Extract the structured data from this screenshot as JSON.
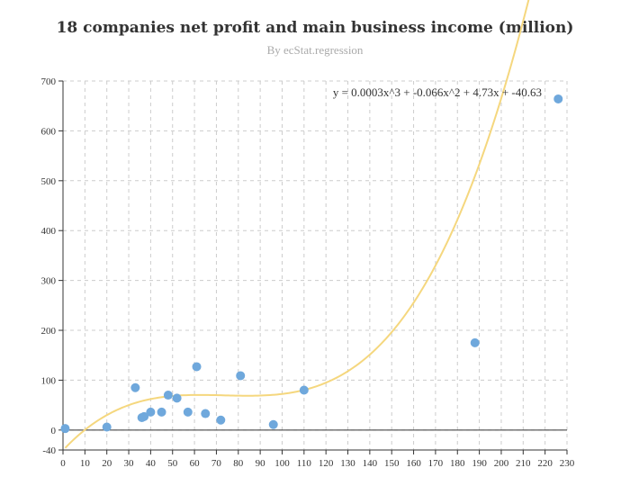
{
  "chart_data": {
    "type": "scatter",
    "title": "18 companies net profit and main business income (million)",
    "subtitle": "By ecStat.regression",
    "xlabel": "",
    "ylabel": "",
    "xlim": [
      0,
      230
    ],
    "ylim": [
      -40,
      700
    ],
    "x_ticks": [
      0,
      10,
      20,
      30,
      40,
      50,
      60,
      70,
      80,
      90,
      100,
      110,
      120,
      130,
      140,
      150,
      160,
      170,
      180,
      190,
      200,
      210,
      220,
      230
    ],
    "y_ticks": [
      -40,
      0,
      100,
      200,
      300,
      400,
      500,
      600,
      700
    ],
    "grid": true,
    "colors": {
      "points": "#6fa8dc",
      "fit_line": "#f5d77e"
    },
    "series": [
      {
        "type": "scatter",
        "points": [
          [
            1,
            3
          ],
          [
            20,
            6
          ],
          [
            33,
            85
          ],
          [
            36,
            25
          ],
          [
            37,
            27
          ],
          [
            40,
            36
          ],
          [
            45,
            36
          ],
          [
            48,
            70
          ],
          [
            52,
            64
          ],
          [
            57,
            36
          ],
          [
            61,
            127
          ],
          [
            65,
            33
          ],
          [
            72,
            20
          ],
          [
            81,
            109
          ],
          [
            96,
            11
          ],
          [
            110,
            80
          ],
          [
            188,
            175
          ],
          [
            226,
            664
          ]
        ]
      },
      {
        "type": "line",
        "regression": "polynomial",
        "coefficients": {
          "a": 0.0003,
          "b": -0.066,
          "c": 4.73,
          "d": -40.63
        },
        "equation": "y = 0.0003x^3 + -0.066x^2 + 4.73x + -40.63"
      }
    ]
  }
}
